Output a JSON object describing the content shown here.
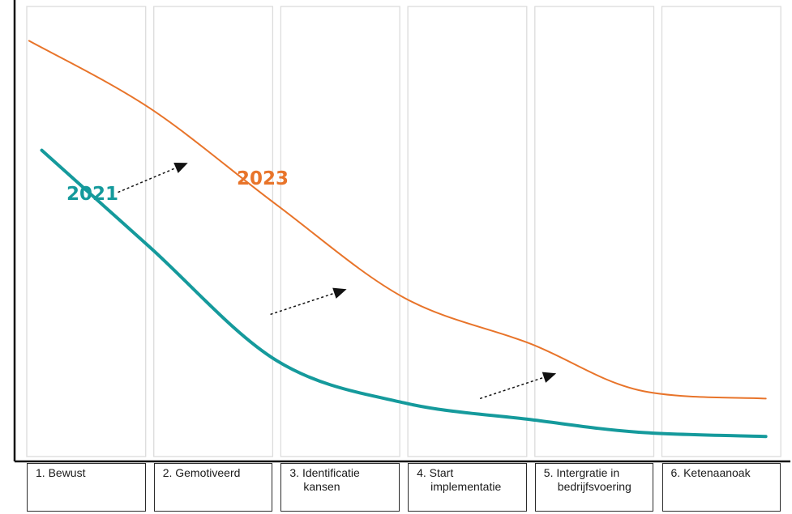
{
  "chart_data": {
    "type": "line",
    "title": "",
    "xlabel": "",
    "ylabel": "",
    "categories": [
      [
        "1. Bewust"
      ],
      [
        "2. Gemotiveerd"
      ],
      [
        "3. Identificatie",
        "kansen"
      ],
      [
        "4. Start",
        "implementatie"
      ],
      [
        "5. Intergratie in",
        "bedrijfsvoering"
      ],
      [
        "6. Ketenaanoak"
      ]
    ],
    "grid": "vertical columns per stage",
    "series": [
      {
        "name": "2021",
        "color": "#159a9c",
        "x": [
          0.15,
          1.0,
          2.0,
          3.0,
          4.0,
          4.85,
          5.85
        ],
        "y": [
          0.72,
          0.49,
          0.22,
          0.12,
          0.08,
          0.05,
          0.04
        ]
      },
      {
        "name": "2023",
        "color": "#e8742a",
        "x": [
          0.05,
          1.0,
          2.0,
          3.0,
          4.0,
          4.85,
          5.85
        ],
        "y": [
          0.98,
          0.82,
          0.59,
          0.37,
          0.26,
          0.15,
          0.13
        ]
      }
    ],
    "annotations": [
      {
        "type": "arrow",
        "from": [
          0.75,
          0.62
        ],
        "to": [
          1.3,
          0.69
        ]
      },
      {
        "type": "arrow",
        "from": [
          1.95,
          0.33
        ],
        "to": [
          2.55,
          0.39
        ]
      },
      {
        "type": "arrow",
        "from": [
          3.6,
          0.13
        ],
        "to": [
          4.2,
          0.19
        ]
      }
    ]
  }
}
